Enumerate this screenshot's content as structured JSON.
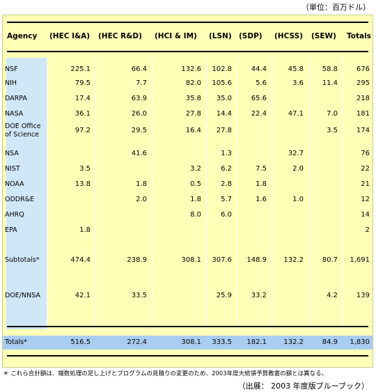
{
  "unit": "（単位：百万ドル）",
  "columns": [
    "Agency",
    "(HEC I&A)",
    "(HEC R&D)",
    "(HCI & IM)",
    "(LSN)",
    "(SDP)",
    "(HCSS)",
    "(SEW)",
    "Totals"
  ],
  "rows": [
    {
      "agency": "NSF",
      "vals": [
        "225.1",
        "66.4",
        "132.6",
        "102.8",
        "44.4",
        "45.8",
        "58.8",
        "676"
      ]
    },
    {
      "agency": "NIH",
      "vals": [
        "79.5",
        "7.7",
        "82.0",
        "105.6",
        "5.6",
        "3.6",
        "11.4",
        "295"
      ]
    },
    {
      "agency": "DARPA",
      "vals": [
        "17.4",
        "63.9",
        "35.8",
        "35.0",
        "65.6",
        "",
        "",
        "218"
      ]
    },
    {
      "agency": "NASA",
      "vals": [
        "36.1",
        "26.0",
        "27.8",
        "14.4",
        "22.4",
        "47.1",
        "7.0",
        "181"
      ]
    },
    {
      "agency": "DOE Office of Science",
      "agency_line1": "DOE Office",
      "agency_line2": "of Science",
      "vals": [
        "97.2",
        "29.5",
        "16.4",
        "27.8",
        "",
        "",
        "3.5",
        "174"
      ]
    },
    {
      "agency": "NSA",
      "vals": [
        "",
        "41.6",
        "",
        "1.3",
        "",
        "32.7",
        "",
        "76"
      ]
    },
    {
      "agency": "NIST",
      "vals": [
        "3.5",
        "",
        "3.2",
        "6.2",
        "7.5",
        "2.0",
        "",
        "22"
      ]
    },
    {
      "agency": "NOAA",
      "vals": [
        "13.8",
        "1.8",
        "0.5",
        "2.8",
        "1.8",
        "",
        "",
        "21"
      ]
    },
    {
      "agency": "ODDR&E",
      "vals": [
        "",
        "2.0",
        "1.8",
        "5.7",
        "1.6",
        "1.0",
        "",
        "12"
      ]
    },
    {
      "agency": "AHRQ",
      "vals": [
        "",
        "",
        "8.0",
        "6.0",
        "",
        "",
        "",
        "14"
      ]
    },
    {
      "agency": "EPA",
      "vals": [
        "1.8",
        "",
        "",
        "",
        "",
        "",
        "",
        "2"
      ]
    },
    {
      "agency": "Subtotals*",
      "vals": [
        "474.4",
        "238.9",
        "308.1",
        "307.6",
        "148.9",
        "132.2",
        "80.7",
        "1,691"
      ]
    },
    {
      "agency": "DOE/NNSA",
      "vals": [
        "42.1",
        "33.5",
        "",
        "25.9",
        "33.2",
        "",
        "4.2",
        "139"
      ]
    }
  ],
  "totals": {
    "agency": "Totals*",
    "vals": [
      "516.5",
      "272.4",
      "308.1",
      "333.5",
      "182.1",
      "132.2",
      "84.9",
      "1,830"
    ]
  },
  "footnote": "＊ これら合計額は、端数処理の足し上げとプログラムの見積りの変更のため、2003年度大統領予算教書の額とは異なる。",
  "source": "（出展： 2003 年度版ブルーブック）",
  "colors": {
    "panel": "#ffffb8",
    "agency_band": "#cfe7f7",
    "totals_band": "#a9cdf0"
  }
}
